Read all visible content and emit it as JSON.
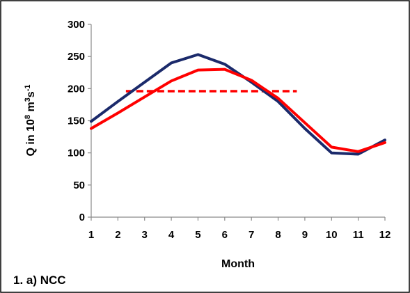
{
  "chart_data": {
    "type": "line",
    "x": [
      1,
      2,
      3,
      4,
      5,
      6,
      7,
      8,
      9,
      10,
      11,
      12
    ],
    "series": [
      {
        "color": "#1b2a6b",
        "values": [
          149,
          180,
          210,
          240,
          253,
          238,
          210,
          180,
          138,
          100,
          98,
          120
        ]
      },
      {
        "color": "#ff0000",
        "values": [
          138,
          162,
          187,
          212,
          229,
          230,
          213,
          185,
          147,
          109,
          102,
          116
        ]
      }
    ],
    "reference_line": {
      "color": "#ff0000",
      "style": "dashed",
      "value": 196,
      "x_range": [
        2.3,
        8.7
      ]
    },
    "x_ticks": [
      "1",
      "2",
      "3",
      "4",
      "5",
      "6",
      "7",
      "8",
      "9",
      "10",
      "11",
      "12"
    ],
    "y_ticks": [
      "0",
      "50",
      "100",
      "150",
      "200",
      "250",
      "300"
    ],
    "xlabel": "Month",
    "ylabel_parts": [
      "Q in 10",
      "8",
      " m",
      "3",
      "s",
      "-1"
    ],
    "xlim": [
      1,
      12
    ],
    "ylim": [
      0,
      300
    ],
    "grid": false,
    "panel_label": "1. a) NCC"
  }
}
